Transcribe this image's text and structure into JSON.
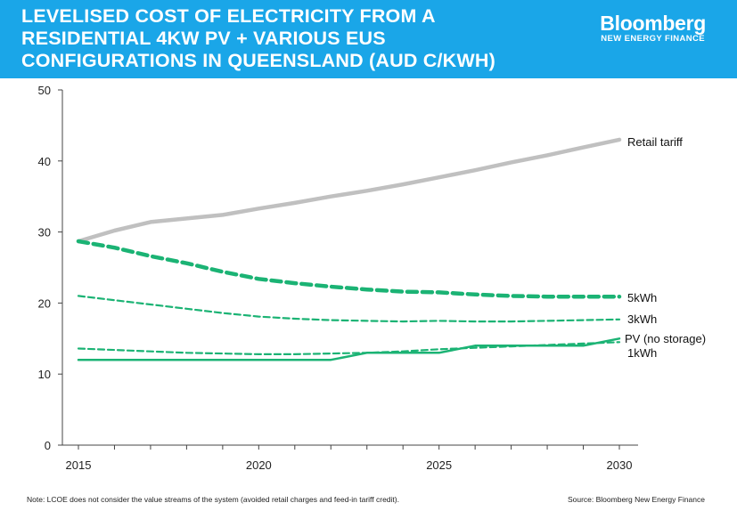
{
  "header": {
    "title_lines": [
      "LEVELISED COST OF ELECTRICITY FROM A",
      "RESIDENTIAL 4KW  PV + VARIOUS EUS",
      "CONFIGURATIONS IN QUEENSLAND (AUD C/KWH)"
    ],
    "logo_brand": "Bloomberg",
    "logo_sub": "NEW ENERGY FINANCE",
    "background_color": "#1aa6e8"
  },
  "chart_data": {
    "type": "line",
    "title": "LEVELISED COST OF ELECTRICITY FROM A RESIDENTIAL 4KW  PV + VARIOUS EUS CONFIGURATIONS IN QUEENSLAND (AUD C/KWH)",
    "xlabel": "",
    "ylabel": "",
    "xlim": [
      2015,
      2030
    ],
    "ylim": [
      0,
      50
    ],
    "x_ticks": [
      "2015",
      "2020",
      "2025",
      "2030"
    ],
    "y_ticks": [
      "0",
      "10",
      "20",
      "30",
      "40",
      "50"
    ],
    "grid": false,
    "legend": "direct labels at right end of lines",
    "x": [
      2015,
      2016,
      2017,
      2018,
      2019,
      2020,
      2021,
      2022,
      2023,
      2024,
      2025,
      2026,
      2027,
      2028,
      2029,
      2030
    ],
    "series": [
      {
        "name": "Retail tariff",
        "color": "#c0c0c0",
        "style": "solid-thick",
        "values": [
          28.7,
          30.2,
          31.4,
          31.9,
          32.4,
          33.3,
          34.1,
          35.0,
          35.8,
          36.7,
          37.7,
          38.7,
          39.8,
          40.8,
          41.9,
          43.0
        ]
      },
      {
        "name": "5kWh",
        "color": "#1bb374",
        "style": "dashed-thick",
        "values": [
          28.7,
          27.8,
          26.6,
          25.6,
          24.4,
          23.4,
          22.8,
          22.3,
          21.9,
          21.6,
          21.5,
          21.2,
          21.0,
          20.9,
          20.9,
          20.9
        ]
      },
      {
        "name": "3kWh",
        "color": "#1bb374",
        "style": "dashed-thin",
        "values": [
          21.0,
          20.4,
          19.8,
          19.2,
          18.6,
          18.1,
          17.8,
          17.6,
          17.5,
          17.4,
          17.5,
          17.4,
          17.4,
          17.5,
          17.6,
          17.7
        ]
      },
      {
        "name": "1kWh",
        "color": "#1bb374",
        "style": "dashed-thin",
        "values": [
          13.6,
          13.4,
          13.2,
          13.0,
          12.9,
          12.8,
          12.8,
          12.9,
          13.0,
          13.2,
          13.5,
          13.7,
          13.9,
          14.1,
          14.3,
          14.5
        ]
      },
      {
        "name": "PV (no storage)",
        "color": "#1bb374",
        "style": "solid",
        "values": [
          12.0,
          12.0,
          12.0,
          12.0,
          12.0,
          12.0,
          12.0,
          12.0,
          13.0,
          13.0,
          13.0,
          14.0,
          14.0,
          14.0,
          14.0,
          15.0
        ]
      }
    ]
  },
  "footer": {
    "note": "Note: LCOE does not consider the value streams of the system (avoided retail charges and feed-in tariff credit).",
    "source": "Source: Bloomberg New Energy Finance"
  }
}
